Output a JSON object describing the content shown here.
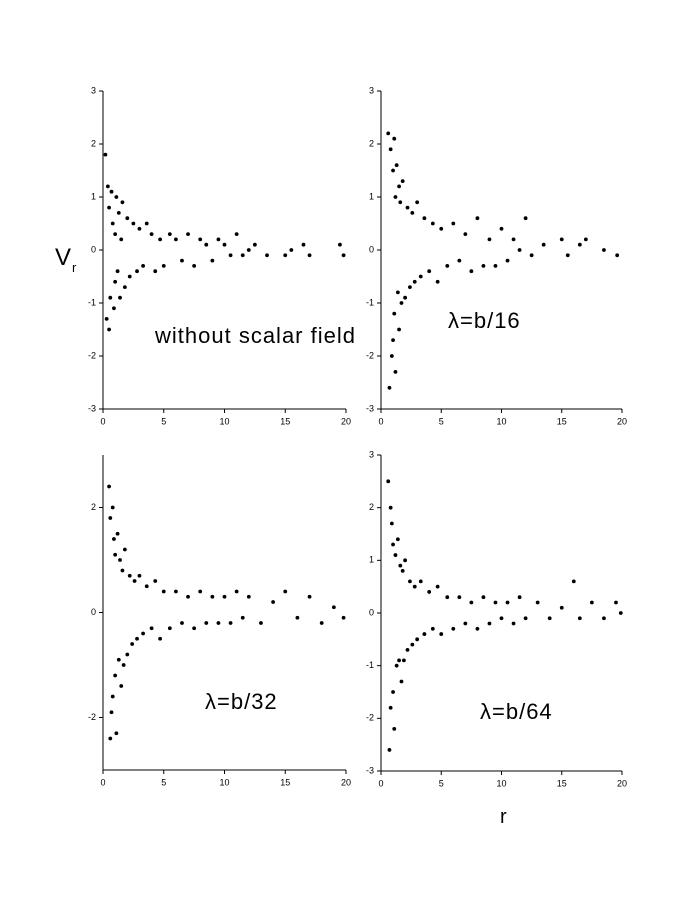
{
  "chart_data": [
    {
      "type": "scatter",
      "annotation": "without scalar field",
      "ylabel": {
        "main": "V",
        "sub": "r"
      },
      "color": "#000000",
      "xlim": [
        0,
        20
      ],
      "ylim": [
        -3,
        3
      ],
      "xticks": [
        0,
        5,
        10,
        15,
        20
      ],
      "yticks": [
        -3,
        -2,
        -1,
        0,
        1,
        2,
        3
      ],
      "x": [
        0.2,
        0.3,
        0.4,
        0.5,
        0.5,
        0.6,
        0.7,
        0.8,
        0.9,
        1.0,
        1.0,
        1.1,
        1.2,
        1.3,
        1.4,
        1.5,
        1.6,
        1.8,
        2.0,
        2.2,
        2.5,
        2.8,
        3.0,
        3.3,
        3.6,
        4.0,
        4.3,
        4.7,
        5.0,
        5.5,
        6.0,
        6.5,
        7.0,
        7.5,
        8.0,
        8.5,
        9.0,
        9.5,
        10.0,
        10.5,
        11.0,
        11.5,
        12.0,
        12.5,
        13.5,
        15.0,
        15.5,
        16.5,
        17.0,
        19.5,
        19.8
      ],
      "values": [
        1.8,
        -1.3,
        1.2,
        -1.5,
        0.8,
        -0.9,
        1.1,
        0.5,
        -1.1,
        0.3,
        -0.6,
        1.0,
        -0.4,
        0.7,
        -0.9,
        0.2,
        0.9,
        -0.7,
        0.6,
        -0.5,
        0.5,
        -0.4,
        0.4,
        -0.3,
        0.5,
        0.3,
        -0.4,
        0.2,
        -0.3,
        0.3,
        0.2,
        -0.2,
        0.3,
        -0.3,
        0.2,
        0.1,
        -0.2,
        0.2,
        0.1,
        -0.1,
        0.3,
        -0.1,
        0.0,
        0.1,
        -0.1,
        -0.1,
        0.0,
        0.1,
        -0.1,
        0.1,
        -0.1
      ]
    },
    {
      "type": "scatter",
      "annotation": "λ=b/16",
      "color": "#000000",
      "xlim": [
        0,
        20
      ],
      "ylim": [
        -3,
        3
      ],
      "xticks": [
        0,
        5,
        10,
        15,
        20
      ],
      "yticks": [
        -3,
        -2,
        -1,
        0,
        1,
        2,
        3
      ],
      "x": [
        0.6,
        0.7,
        0.8,
        0.9,
        1.0,
        1.0,
        1.1,
        1.1,
        1.2,
        1.2,
        1.3,
        1.4,
        1.5,
        1.5,
        1.6,
        1.7,
        1.8,
        2.0,
        2.2,
        2.4,
        2.6,
        2.8,
        3.0,
        3.3,
        3.6,
        4.0,
        4.3,
        4.7,
        5.0,
        5.5,
        6.0,
        6.5,
        7.0,
        7.5,
        8.0,
        8.5,
        9.0,
        9.5,
        10.0,
        10.5,
        11.0,
        11.5,
        12.0,
        12.5,
        13.5,
        15.0,
        15.5,
        16.5,
        17.0,
        18.5,
        19.6
      ],
      "values": [
        2.2,
        -2.6,
        1.9,
        -2.0,
        1.5,
        -1.7,
        2.1,
        -1.2,
        1.0,
        -2.3,
        1.6,
        -0.8,
        1.2,
        -1.5,
        0.9,
        -1.0,
        1.3,
        -0.9,
        0.8,
        -0.7,
        0.7,
        -0.6,
        0.9,
        -0.5,
        0.6,
        -0.4,
        0.5,
        -0.6,
        0.4,
        -0.3,
        0.5,
        -0.2,
        0.3,
        -0.4,
        0.6,
        -0.3,
        0.2,
        -0.3,
        0.4,
        -0.2,
        0.2,
        0.0,
        0.6,
        -0.1,
        0.1,
        0.2,
        -0.1,
        0.1,
        0.2,
        0.0,
        -0.1
      ]
    },
    {
      "type": "scatter",
      "annotation": "λ=b/32",
      "color": "#000000",
      "xlim": [
        0,
        20
      ],
      "ylim": [
        -3,
        3
      ],
      "xticks": [
        0,
        5,
        10,
        15,
        20
      ],
      "yticks": [
        -2,
        0,
        2
      ],
      "x": [
        0.5,
        0.6,
        0.6,
        0.7,
        0.8,
        0.8,
        0.9,
        1.0,
        1.0,
        1.1,
        1.2,
        1.3,
        1.4,
        1.5,
        1.6,
        1.7,
        1.8,
        2.0,
        2.2,
        2.4,
        2.6,
        2.8,
        3.0,
        3.3,
        3.6,
        4.0,
        4.3,
        4.7,
        5.0,
        5.5,
        6.0,
        6.5,
        7.0,
        7.5,
        8.0,
        8.5,
        9.0,
        9.5,
        10.0,
        10.5,
        11.0,
        11.5,
        12.0,
        13.0,
        14.0,
        15.0,
        16.0,
        17.0,
        18.0,
        19.0,
        19.8
      ],
      "values": [
        2.4,
        -2.4,
        1.8,
        -1.9,
        2.0,
        -1.6,
        1.4,
        -1.2,
        1.1,
        -2.3,
        1.5,
        -0.9,
        1.0,
        -1.4,
        0.8,
        -1.0,
        1.2,
        -0.8,
        0.7,
        -0.6,
        0.6,
        -0.5,
        0.7,
        -0.4,
        0.5,
        -0.3,
        0.6,
        -0.5,
        0.4,
        -0.3,
        0.4,
        -0.2,
        0.3,
        -0.3,
        0.4,
        -0.2,
        0.3,
        -0.2,
        0.3,
        -0.2,
        0.4,
        -0.1,
        0.3,
        -0.2,
        0.2,
        0.4,
        -0.1,
        0.3,
        -0.2,
        0.1,
        -0.1
      ]
    },
    {
      "type": "scatter",
      "annotation": "λ=b/64",
      "xlabel": "r",
      "color": "#000000",
      "xlim": [
        0,
        20
      ],
      "ylim": [
        -3,
        3
      ],
      "xticks": [
        0,
        5,
        10,
        15,
        20
      ],
      "yticks": [
        -3,
        -2,
        -1,
        0,
        1,
        2,
        3
      ],
      "x": [
        0.6,
        0.7,
        0.8,
        0.8,
        0.9,
        1.0,
        1.0,
        1.1,
        1.2,
        1.3,
        1.4,
        1.5,
        1.6,
        1.7,
        1.8,
        1.9,
        2.0,
        2.2,
        2.4,
        2.6,
        2.8,
        3.0,
        3.3,
        3.6,
        4.0,
        4.3,
        4.7,
        5.0,
        5.5,
        6.0,
        6.5,
        7.0,
        7.5,
        8.0,
        8.5,
        9.0,
        9.5,
        10.0,
        10.5,
        11.0,
        11.5,
        12.0,
        13.0,
        14.0,
        15.0,
        16.0,
        16.5,
        17.5,
        18.5,
        19.5,
        19.9
      ],
      "values": [
        2.5,
        -2.6,
        2.0,
        -1.8,
        1.7,
        -1.5,
        1.3,
        -2.2,
        1.1,
        -1.0,
        1.4,
        -0.9,
        0.9,
        -1.3,
        0.8,
        -0.9,
        1.0,
        -0.7,
        0.6,
        -0.6,
        0.5,
        -0.5,
        0.6,
        -0.4,
        0.4,
        -0.3,
        0.5,
        -0.4,
        0.3,
        -0.3,
        0.3,
        -0.2,
        0.2,
        -0.3,
        0.3,
        -0.2,
        0.2,
        -0.1,
        0.2,
        -0.2,
        0.3,
        -0.1,
        0.2,
        -0.1,
        0.1,
        0.6,
        -0.1,
        0.2,
        -0.1,
        0.2,
        0.0
      ]
    }
  ]
}
